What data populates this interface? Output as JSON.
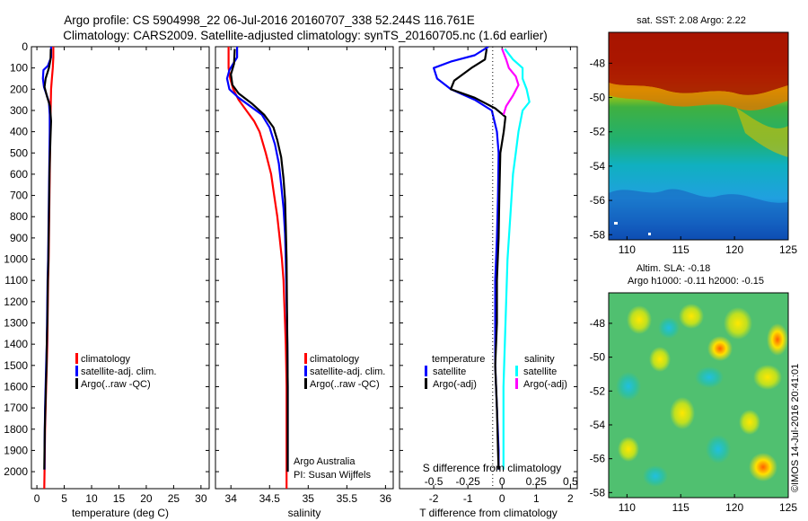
{
  "header": {
    "title_line1": "Argo profile: CS 5904998_22 06-Jul-2016 20160707_338 52.244S 116.761E",
    "title_line2": "Climatology: CARS2009. Satellite-adjusted climatology: synTS_20160705.nc (1.6d earlier)"
  },
  "colors": {
    "climatology": "#ff0000",
    "satellite": "#0000ff",
    "argo": "#000000",
    "sal_satellite": "#00ffff",
    "sal_argo": "#ff00ff"
  },
  "watermark": "©IMOS 14-Jul-2016 20:41:01",
  "chart_data": [
    {
      "id": "temperature",
      "type": "line",
      "xlabel": "temperature (deg C)",
      "ylabel": "",
      "xlim": [
        -1,
        31.5
      ],
      "ylim": [
        2080,
        0
      ],
      "xticks": [
        0,
        5,
        10,
        15,
        20,
        25,
        30
      ],
      "yticks": [
        0,
        100,
        200,
        300,
        400,
        500,
        600,
        700,
        800,
        900,
        1000,
        1100,
        1200,
        1300,
        1400,
        1500,
        1600,
        1700,
        1800,
        1900,
        2000
      ],
      "legend": {
        "position": "lower-center",
        "entries": [
          "climatology",
          "satellite-adj. clim.",
          "Argo(..raw -QC)"
        ]
      },
      "series": [
        {
          "name": "climatology",
          "color": "#ff0000",
          "points": [
            [
              3.0,
              0
            ],
            [
              3.0,
              50
            ],
            [
              2.9,
              100
            ],
            [
              2.75,
              150
            ],
            [
              2.6,
              200
            ],
            [
              2.55,
              260
            ],
            [
              2.5,
              320
            ],
            [
              2.45,
              400
            ],
            [
              2.4,
              500
            ],
            [
              2.35,
              600
            ],
            [
              2.3,
              700
            ],
            [
              2.25,
              800
            ],
            [
              2.2,
              900
            ],
            [
              2.15,
              1000
            ],
            [
              2.05,
              1100
            ],
            [
              2.0,
              1200
            ],
            [
              1.95,
              1300
            ],
            [
              1.9,
              1400
            ],
            [
              1.8,
              1500
            ],
            [
              1.7,
              1600
            ],
            [
              1.6,
              1700
            ],
            [
              1.5,
              1800
            ],
            [
              1.45,
              1900
            ],
            [
              1.4,
              2000
            ],
            [
              1.35,
              2080
            ]
          ]
        },
        {
          "name": "satellite-adj. clim.",
          "color": "#0000ff",
          "points": [
            [
              2.6,
              0
            ],
            [
              2.6,
              50
            ],
            [
              2.0,
              90
            ],
            [
              1.2,
              110
            ],
            [
              1.1,
              150
            ],
            [
              1.3,
              190
            ],
            [
              1.7,
              220
            ],
            [
              2.2,
              260
            ],
            [
              2.35,
              320
            ],
            [
              2.35,
              400
            ],
            [
              2.3,
              500
            ],
            [
              2.25,
              600
            ],
            [
              2.2,
              700
            ],
            [
              2.15,
              800
            ],
            [
              2.1,
              900
            ],
            [
              2.05,
              1000
            ],
            [
              1.95,
              1100
            ],
            [
              1.9,
              1200
            ],
            [
              1.85,
              1300
            ],
            [
              1.8,
              1400
            ],
            [
              1.7,
              1500
            ],
            [
              1.6,
              1600
            ],
            [
              1.5,
              1700
            ],
            [
              1.45,
              1800
            ],
            [
              1.4,
              1900
            ],
            [
              1.4,
              1990
            ]
          ]
        },
        {
          "name": "Argo(..raw -QC)",
          "color": "#000000",
          "points": [
            [
              2.55,
              10
            ],
            [
              2.5,
              60
            ],
            [
              2.2,
              100
            ],
            [
              1.6,
              150
            ],
            [
              1.4,
              190
            ],
            [
              1.8,
              230
            ],
            [
              2.4,
              280
            ],
            [
              2.6,
              350
            ],
            [
              2.5,
              420
            ],
            [
              2.4,
              500
            ],
            [
              2.3,
              600
            ],
            [
              2.25,
              700
            ],
            [
              2.2,
              800
            ],
            [
              2.15,
              900
            ],
            [
              2.1,
              1000
            ],
            [
              2.0,
              1100
            ],
            [
              1.95,
              1200
            ],
            [
              1.9,
              1300
            ],
            [
              1.8,
              1400
            ],
            [
              1.75,
              1500
            ],
            [
              1.65,
              1600
            ],
            [
              1.55,
              1700
            ],
            [
              1.45,
              1800
            ],
            [
              1.4,
              1900
            ],
            [
              1.35,
              1990
            ]
          ]
        }
      ]
    },
    {
      "id": "salinity",
      "type": "line",
      "xlabel": "salinity",
      "ylabel": "",
      "xlim": [
        33.8,
        36.1
      ],
      "ylim": [
        2080,
        0
      ],
      "xticks": [
        34,
        34.5,
        35,
        35.5,
        36
      ],
      "legend": {
        "position": "lower-right",
        "entries": [
          "climatology",
          "satellite-adj. clim.",
          "Argo(..raw -QC)"
        ]
      },
      "notes": [
        "Argo Australia",
        "PI: Susan Wijffels"
      ],
      "series": [
        {
          "name": "climatology",
          "color": "#ff0000",
          "points": [
            [
              33.97,
              0
            ],
            [
              33.97,
              100
            ],
            [
              33.99,
              150
            ],
            [
              34.03,
              200
            ],
            [
              34.1,
              250
            ],
            [
              34.2,
              300
            ],
            [
              34.3,
              350
            ],
            [
              34.37,
              400
            ],
            [
              34.45,
              500
            ],
            [
              34.52,
              600
            ],
            [
              34.56,
              700
            ],
            [
              34.6,
              800
            ],
            [
              34.63,
              900
            ],
            [
              34.66,
              1000
            ],
            [
              34.68,
              1100
            ],
            [
              34.69,
              1200
            ],
            [
              34.7,
              1300
            ],
            [
              34.71,
              1400
            ],
            [
              34.715,
              1500
            ],
            [
              34.72,
              1600
            ],
            [
              34.72,
              1800
            ],
            [
              34.72,
              2000
            ],
            [
              34.72,
              2080
            ]
          ]
        },
        {
          "name": "satellite-adj. clim.",
          "color": "#0000ff",
          "points": [
            [
              34.08,
              0
            ],
            [
              34.08,
              50
            ],
            [
              33.98,
              110
            ],
            [
              33.95,
              150
            ],
            [
              33.98,
              200
            ],
            [
              34.1,
              240
            ],
            [
              34.25,
              280
            ],
            [
              34.4,
              320
            ],
            [
              34.5,
              380
            ],
            [
              34.57,
              460
            ],
            [
              34.62,
              550
            ],
            [
              34.65,
              650
            ],
            [
              34.68,
              760
            ],
            [
              34.7,
              880
            ],
            [
              34.71,
              1000
            ],
            [
              34.72,
              1200
            ],
            [
              34.73,
              1400
            ],
            [
              34.735,
              1600
            ],
            [
              34.735,
              1800
            ],
            [
              34.735,
              2000
            ]
          ]
        },
        {
          "name": "Argo(..raw -QC)",
          "color": "#000000",
          "points": [
            [
              34.05,
              10
            ],
            [
              34.04,
              80
            ],
            [
              34.0,
              130
            ],
            [
              34.02,
              180
            ],
            [
              34.1,
              220
            ],
            [
              34.28,
              270
            ],
            [
              34.43,
              320
            ],
            [
              34.55,
              380
            ],
            [
              34.6,
              440
            ],
            [
              34.65,
              520
            ],
            [
              34.68,
              620
            ],
            [
              34.7,
              720
            ],
            [
              34.71,
              840
            ],
            [
              34.72,
              1000
            ],
            [
              34.725,
              1200
            ],
            [
              34.73,
              1400
            ],
            [
              34.735,
              1600
            ],
            [
              34.735,
              1800
            ],
            [
              34.735,
              2000
            ]
          ]
        }
      ]
    },
    {
      "id": "difference",
      "type": "line",
      "xlabel": "T difference from climatology",
      "x2label": "S difference from climatology",
      "ylabel": "",
      "xlim": [
        -3,
        2.2
      ],
      "ylim": [
        2080,
        0
      ],
      "xticks": [
        -2,
        -1,
        0,
        1,
        2
      ],
      "x2ticks": [
        -0.5,
        -0.25,
        0,
        0.25,
        0.5
      ],
      "legend": {
        "position": "lower-center",
        "groups": [
          "temperature",
          "salinity"
        ],
        "entries": [
          "satellite",
          "Argo(-adj)",
          "satellite",
          "Argo(-adj)"
        ]
      },
      "series": [
        {
          "name": "temperature satellite",
          "color": "#0000ff",
          "points": [
            [
              -0.4,
              0
            ],
            [
              -0.8,
              40
            ],
            [
              -1.5,
              70
            ],
            [
              -2.0,
              100
            ],
            [
              -1.9,
              150
            ],
            [
              -1.5,
              200
            ],
            [
              -0.8,
              250
            ],
            [
              -0.3,
              300
            ],
            [
              -0.15,
              400
            ],
            [
              -0.1,
              500
            ],
            [
              -0.12,
              700
            ],
            [
              -0.15,
              900
            ],
            [
              -0.2,
              1100
            ],
            [
              -0.2,
              1300
            ],
            [
              -0.2,
              1500
            ],
            [
              -0.15,
              1700
            ],
            [
              -0.1,
              1900
            ],
            [
              -0.1,
              1990
            ]
          ]
        },
        {
          "name": "temperature Argo(-adj)",
          "color": "#000000",
          "points": [
            [
              -0.45,
              10
            ],
            [
              -0.5,
              60
            ],
            [
              -0.9,
              100
            ],
            [
              -1.4,
              160
            ],
            [
              -1.5,
              200
            ],
            [
              -0.8,
              240
            ],
            [
              -0.2,
              290
            ],
            [
              0.1,
              330
            ],
            [
              0.05,
              400
            ],
            [
              -0.05,
              500
            ],
            [
              -0.08,
              700
            ],
            [
              -0.1,
              900
            ],
            [
              -0.15,
              1100
            ],
            [
              -0.15,
              1300
            ],
            [
              -0.2,
              1500
            ],
            [
              -0.15,
              1700
            ],
            [
              -0.12,
              1900
            ],
            [
              -0.1,
              1990
            ]
          ]
        },
        {
          "name": "salinity satellite",
          "color": "#00ffff",
          "points": [
            [
              0.02,
              10
            ],
            [
              0.08,
              60
            ],
            [
              0.15,
              100
            ],
            [
              0.15,
              150
            ],
            [
              0.18,
              200
            ],
            [
              0.2,
              260
            ],
            [
              0.15,
              300
            ],
            [
              0.12,
              400
            ],
            [
              0.1,
              500
            ],
            [
              0.08,
              600
            ],
            [
              0.06,
              800
            ],
            [
              0.04,
              1000
            ],
            [
              0.03,
              1200
            ],
            [
              0.02,
              1400
            ],
            [
              0.01,
              1600
            ],
            [
              0.01,
              1800
            ],
            [
              0.01,
              1990
            ]
          ]
        },
        {
          "name": "salinity Argo(-adj)",
          "color": "#ff00ff",
          "points": [
            [
              0.0,
              10
            ],
            [
              0.03,
              60
            ],
            [
              0.05,
              100
            ],
            [
              0.1,
              140
            ],
            [
              0.12,
              180
            ],
            [
              0.08,
              230
            ],
            [
              0.03,
              280
            ],
            [
              0.01,
              320
            ]
          ]
        }
      ]
    },
    {
      "id": "sst_map",
      "type": "heatmap",
      "title": "sat. SST: 2.08 Argo: 2.22",
      "xticks": [
        110,
        115,
        120,
        125
      ],
      "yticks": [
        -48,
        -50,
        -52,
        -54,
        -56,
        -58
      ],
      "xlim": [
        108.3,
        125
      ],
      "ylim": [
        -58.3,
        -46.2
      ]
    },
    {
      "id": "sla_map",
      "type": "heatmap",
      "title_line1": "Altim. SLA: -0.18",
      "title_line2": "Argo h1000: -0.11 h2000: -0.15",
      "xticks": [
        110,
        115,
        120,
        125
      ],
      "yticks": [
        -48,
        -50,
        -52,
        -54,
        -56,
        -58
      ],
      "xlim": [
        108.3,
        125
      ],
      "ylim": [
        -58.3,
        -46.2
      ]
    }
  ]
}
